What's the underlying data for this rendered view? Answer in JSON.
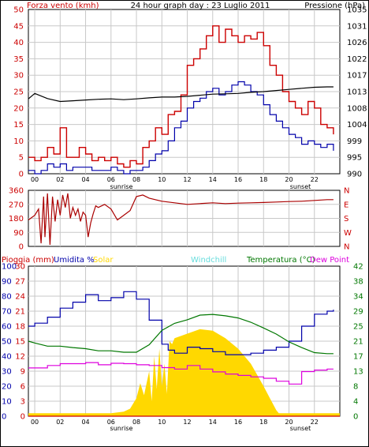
{
  "header": {
    "left": "Forza vento (kmh)",
    "center": "24 hour graph day : 23 Luglio 2011",
    "right": "Pressione (hPa)"
  },
  "colors": {
    "red": "#cc0000",
    "blue": "#0000aa",
    "black": "#000000",
    "darkred": "#aa0000",
    "green": "#007700",
    "magenta": "#dd00dd",
    "yellow": "#ffd800",
    "cyan": "#66dddd",
    "grid": "#c8c8c8"
  },
  "x_ticks": [
    "00",
    "02",
    "04",
    "06",
    "08",
    "10",
    "12",
    "14",
    "16",
    "18",
    "20",
    "22"
  ],
  "sun_labels": {
    "sunrise": "sunrise",
    "sunset": "sunset"
  },
  "chart_data": [
    {
      "type": "line",
      "title": "24 hour graph day : 23 Luglio 2011",
      "ylabel": "Forza vento (kmh)",
      "y2label": "Pressione (hPa)",
      "xlim": [
        -0.5,
        24
      ],
      "ylim": [
        0,
        50
      ],
      "y_ticks": [
        "0",
        "5",
        "10",
        "15",
        "20",
        "25",
        "30",
        "35",
        "40",
        "45",
        "50"
      ],
      "y2_ticks": [
        "990",
        "995",
        "999",
        "1004",
        "1008",
        "1013",
        "1017",
        "1022",
        "1026",
        "1031",
        "1035"
      ],
      "y2lim": [
        990,
        1035
      ],
      "series": [
        {
          "name": "Raffica",
          "x": [
            -0.5,
            0,
            0.5,
            1,
            1.5,
            2,
            2.5,
            3,
            3.5,
            4,
            4.5,
            5,
            5.5,
            6,
            6.5,
            7,
            7.5,
            8,
            8.5,
            9,
            9.5,
            10,
            10.5,
            11,
            11.5,
            12,
            12.5,
            13,
            13.5,
            14,
            14.5,
            15,
            15.5,
            16,
            16.5,
            17,
            17.5,
            18,
            18.5,
            19,
            19.5,
            20,
            20.5,
            21,
            21.5,
            22,
            22.5,
            23,
            23.5
          ],
          "values": [
            5,
            4,
            5,
            8,
            6,
            14,
            5,
            5,
            8,
            6,
            4,
            5,
            4,
            5,
            3,
            2,
            4,
            3,
            8,
            10,
            14,
            12,
            18,
            19,
            24,
            33,
            35,
            38,
            42,
            45,
            40,
            44,
            42,
            40,
            42,
            41,
            43,
            39,
            33,
            30,
            25,
            22,
            20,
            18,
            22,
            20,
            15,
            14,
            12
          ]
        },
        {
          "name": "Vento medio",
          "x": [
            -0.5,
            0,
            0.5,
            1,
            1.5,
            2,
            2.5,
            3,
            3.5,
            4,
            4.5,
            5,
            5.5,
            6,
            6.5,
            7,
            7.5,
            8,
            8.5,
            9,
            9.5,
            10,
            10.5,
            11,
            11.5,
            12,
            12.5,
            13,
            13.5,
            14,
            14.5,
            15,
            15.5,
            16,
            16.5,
            17,
            17.5,
            18,
            18.5,
            19,
            19.5,
            20,
            20.5,
            21,
            21.5,
            22,
            22.5,
            23,
            23.5
          ],
          "values": [
            1,
            0,
            1,
            3,
            2,
            3,
            1,
            2,
            2,
            2,
            1,
            1,
            1,
            2,
            1,
            0,
            1,
            1,
            2,
            4,
            6,
            7,
            10,
            14,
            16,
            20,
            22,
            23,
            25,
            26,
            24,
            25,
            27,
            28,
            27,
            25,
            24,
            21,
            18,
            16,
            14,
            12,
            11,
            9,
            10,
            9,
            8,
            9,
            7
          ]
        },
        {
          "name": "Pressione",
          "axis": "y2",
          "x": [
            -0.5,
            0,
            1,
            2,
            3,
            4,
            5,
            6,
            7,
            8,
            9,
            10,
            11,
            12,
            13,
            14,
            15,
            16,
            17,
            18,
            19,
            20,
            21,
            22,
            23,
            23.5
          ],
          "values": [
            1010.5,
            1012,
            1010.6,
            1009.8,
            1010,
            1010.2,
            1010.4,
            1010.5,
            1010.3,
            1010.5,
            1010.8,
            1011,
            1011,
            1011.2,
            1011.5,
            1011.8,
            1011.9,
            1012,
            1012.3,
            1012.5,
            1012.8,
            1013.1,
            1013.4,
            1013.7,
            1013.8,
            1013.8
          ]
        }
      ]
    },
    {
      "type": "line",
      "ylabel": "Direzione",
      "xlim": [
        -0.5,
        24
      ],
      "ylim": [
        0,
        360
      ],
      "y_ticks": [
        "0",
        "90",
        "180",
        "270",
        "360"
      ],
      "y2_ticks": [
        "N",
        "W",
        "S",
        "E",
        "N"
      ],
      "series": [
        {
          "name": "Direzione vento",
          "x": [
            -0.5,
            0,
            0.3,
            0.5,
            0.7,
            0.8,
            1,
            1.2,
            1.4,
            1.6,
            1.8,
            2,
            2.2,
            2.4,
            2.6,
            2.8,
            3,
            3.2,
            3.4,
            3.6,
            3.8,
            4,
            4.2,
            4.4,
            4.6,
            4.8,
            5,
            5.5,
            6,
            6.5,
            7,
            7.5,
            8,
            8.5,
            9,
            10,
            11,
            12,
            13,
            14,
            15,
            16,
            17,
            18,
            19,
            20,
            21,
            22,
            23,
            23.5
          ],
          "values": [
            170,
            200,
            240,
            20,
            320,
            60,
            340,
            10,
            320,
            160,
            300,
            200,
            330,
            250,
            340,
            180,
            250,
            200,
            240,
            160,
            220,
            200,
            60,
            150,
            210,
            260,
            250,
            270,
            240,
            170,
            200,
            230,
            320,
            330,
            310,
            290,
            280,
            270,
            275,
            280,
            275,
            278,
            280,
            282,
            285,
            288,
            290,
            295,
            300,
            300
          ]
        }
      ]
    },
    {
      "type": "area",
      "labels": {
        "pioggia": "Pioggia (mm)",
        "umidita": "Umidita %",
        "solar": "Solar",
        "windchill": "Windchill",
        "temperatura": "Temperatura (°C)",
        "dewpoint": "Dew Point"
      },
      "xlim": [
        -0.5,
        24
      ],
      "y_ticks_a": [
        "0",
        "10",
        "20",
        "30",
        "40",
        "50",
        "60",
        "70",
        "80",
        "90",
        "100"
      ],
      "y_ticks_b": [
        "0",
        "3",
        "6",
        "9",
        "12",
        "15",
        "18",
        "21",
        "24",
        "27",
        "30"
      ],
      "y2_ticks": [
        "0",
        "4",
        "8",
        "13",
        "17",
        "21",
        "25",
        "29",
        "34",
        "38",
        "42"
      ],
      "series": [
        {
          "name": "Umidita %",
          "ylim": [
            0,
            100
          ],
          "x": [
            -0.5,
            0,
            1,
            2,
            3,
            4,
            5,
            6,
            7,
            8,
            9,
            10,
            10.5,
            11,
            12,
            13,
            14,
            15,
            16,
            17,
            18,
            19,
            20,
            21,
            22,
            23,
            23.5
          ],
          "values": [
            60,
            62,
            66,
            72,
            76,
            81,
            77,
            79,
            83,
            78,
            64,
            48,
            44,
            42,
            46,
            45,
            43,
            41,
            41,
            42,
            44,
            46,
            50,
            60,
            68,
            70,
            71
          ]
        },
        {
          "name": "Solar",
          "ylim": [
            0,
            100
          ],
          "x": [
            -0.5,
            6,
            7,
            7.5,
            8,
            8.3,
            8.6,
            9,
            9.2,
            9.4,
            9.6,
            9.8,
            10,
            10.2,
            10.4,
            10.6,
            10.8,
            11,
            12,
            13,
            14,
            15,
            16,
            17,
            18,
            18.5,
            19,
            19.2,
            19.5,
            24
          ],
          "values": [
            2,
            2,
            3,
            5,
            12,
            22,
            14,
            30,
            10,
            40,
            18,
            45,
            20,
            35,
            15,
            50,
            48,
            52,
            55,
            58,
            57,
            52,
            45,
            35,
            20,
            12,
            4,
            2,
            2,
            2
          ]
        },
        {
          "name": "Temperatura (°C)",
          "ylim": [
            0,
            42
          ],
          "x": [
            -0.5,
            0,
            1,
            2,
            3,
            4,
            5,
            6,
            7,
            8,
            9,
            10,
            11,
            12,
            13,
            14,
            15,
            16,
            17,
            18,
            19,
            20,
            21,
            22,
            23,
            23.5
          ],
          "values": [
            21,
            20.5,
            19.6,
            19.6,
            19.2,
            18.9,
            18.3,
            18.3,
            17.9,
            17.9,
            20,
            24,
            26,
            27,
            28.3,
            28.5,
            28.1,
            27.5,
            26.3,
            24.7,
            23,
            20.8,
            19.2,
            17.8,
            17.5,
            17.5
          ]
        },
        {
          "name": "Dew Point",
          "ylim": [
            0,
            42
          ],
          "x": [
            -0.5,
            0,
            1,
            2,
            3,
            4,
            5,
            6,
            7,
            8,
            9,
            10,
            11,
            12,
            13,
            14,
            15,
            16,
            17,
            18,
            19,
            20,
            21,
            22,
            23,
            23.5
          ],
          "values": [
            13.5,
            13.5,
            14.2,
            14.7,
            14.7,
            15,
            14.4,
            14.8,
            14.7,
            14.4,
            14.2,
            13.6,
            13.2,
            14.2,
            13.2,
            12.4,
            11.8,
            11.4,
            11,
            10.6,
            9.8,
            9,
            12.5,
            12.9,
            13.2,
            13.2
          ]
        },
        {
          "name": "Pioggia (mm)",
          "ylim": [
            0,
            30
          ],
          "x": [
            -0.5,
            24
          ],
          "values": [
            0,
            0
          ]
        }
      ]
    }
  ]
}
